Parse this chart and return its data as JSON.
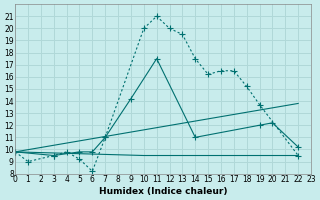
{
  "xlabel": "Humidex (Indice chaleur)",
  "ylabel": "",
  "bg_color": "#c8ecec",
  "grid_color": "#b0d8d8",
  "line_color": "#007070",
  "xlim": [
    0,
    23
  ],
  "ylim": [
    8,
    22
  ],
  "xticks": [
    0,
    1,
    2,
    3,
    4,
    5,
    6,
    7,
    8,
    9,
    10,
    11,
    12,
    13,
    14,
    15,
    16,
    17,
    18,
    19,
    20,
    21,
    22,
    23
  ],
  "yticks": [
    8,
    9,
    10,
    11,
    12,
    13,
    14,
    15,
    16,
    17,
    18,
    19,
    20,
    21
  ],
  "line1": {
    "x": [
      0,
      1,
      3,
      4,
      5,
      6,
      7,
      10,
      11,
      12,
      13,
      14,
      15,
      16,
      17,
      18,
      19,
      22
    ],
    "y": [
      9.8,
      9.0,
      9.5,
      9.8,
      9.2,
      8.2,
      11.0,
      20.0,
      21.0,
      20.0,
      19.5,
      17.5,
      16.2,
      16.5,
      16.5,
      15.2,
      13.7,
      9.5
    ]
  },
  "line2": {
    "x": [
      0,
      3,
      5,
      6,
      7,
      9,
      11,
      14,
      19,
      20,
      22
    ],
    "y": [
      9.8,
      9.5,
      9.8,
      9.8,
      11.0,
      14.2,
      17.5,
      11.0,
      12.0,
      12.2,
      10.2
    ]
  },
  "line3": {
    "x": [
      0,
      22
    ],
    "y": [
      9.8,
      13.8
    ]
  },
  "line4": {
    "x": [
      0,
      10,
      22
    ],
    "y": [
      9.8,
      9.5,
      9.5
    ]
  }
}
